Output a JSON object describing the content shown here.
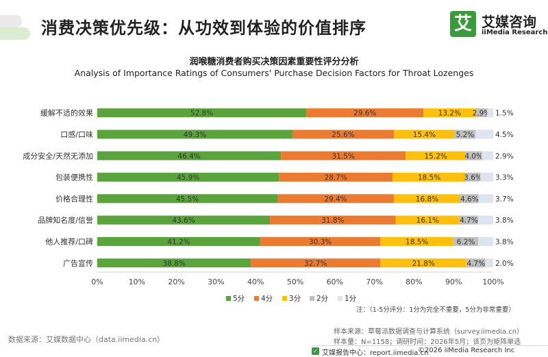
{
  "header": {
    "title": "消费决策优先级：从功效到体验的价值排序",
    "logo_cn": "艾媒咨询",
    "logo_en": "iiMedia Research",
    "logo_glyph": "艾",
    "accent_color": "#3a9a3c"
  },
  "chart_data": {
    "type": "bar",
    "stacked": "horizontal-100%",
    "title": "润喉糖消费者购买决策因素重要性评分分析",
    "subtitle": "Analysis of Importance Ratings of Consumers' Purchase Decision Factors for Throat Lozenges",
    "categories": [
      "缓解不适的效果",
      "口感/口味",
      "成分安全/天然无添加",
      "包装便携性",
      "价格合理性",
      "品牌知名度/信誉",
      "他人推荐/口碑",
      "广告宣传"
    ],
    "series": [
      {
        "name": "5分",
        "color": "#5ba33c",
        "values": [
          52.8,
          49.3,
          46.4,
          45.9,
          45.5,
          43.6,
          41.2,
          38.8
        ]
      },
      {
        "name": "4分",
        "color": "#ec7b32",
        "values": [
          29.6,
          25.6,
          31.5,
          28.7,
          29.4,
          31.8,
          30.3,
          32.7
        ]
      },
      {
        "name": "3分",
        "color": "#fdc00f",
        "values": [
          13.2,
          15.4,
          15.2,
          18.5,
          16.8,
          16.1,
          18.5,
          21.8
        ]
      },
      {
        "name": "2分",
        "color": "#bfbfbf",
        "values": [
          2.9,
          5.2,
          4.0,
          3.6,
          4.6,
          4.7,
          6.2,
          4.7
        ]
      },
      {
        "name": "1分",
        "color": "#dce4f0",
        "values": [
          1.5,
          4.5,
          2.9,
          3.3,
          3.7,
          3.8,
          3.8,
          2.0
        ]
      }
    ],
    "x_ticks": [
      "0%",
      "10%",
      "20%",
      "30%",
      "40%",
      "50%",
      "60%",
      "70%",
      "80%",
      "90%",
      "100%"
    ],
    "xlim": [
      0,
      100
    ],
    "value_suffix": "%",
    "grid": false,
    "legend_position": "bottom"
  },
  "note": "注：（1-5分评分：1分为完全不重要，5分为非常重要）",
  "footer": {
    "source": "数据来源：艾媒数据中心（data.iimedia.cn）",
    "sample_source": "样本来源：草莓派数据调查与计算系统（survey.iimedia.cn）",
    "sample_info": "样本量：N=1158；调研时间：2026年5月；该页为矩阵单选",
    "report_site": "艾媒报告中心：report.iimedia.cn",
    "copyright": "©2026  iiMedia Research  Inc"
  }
}
